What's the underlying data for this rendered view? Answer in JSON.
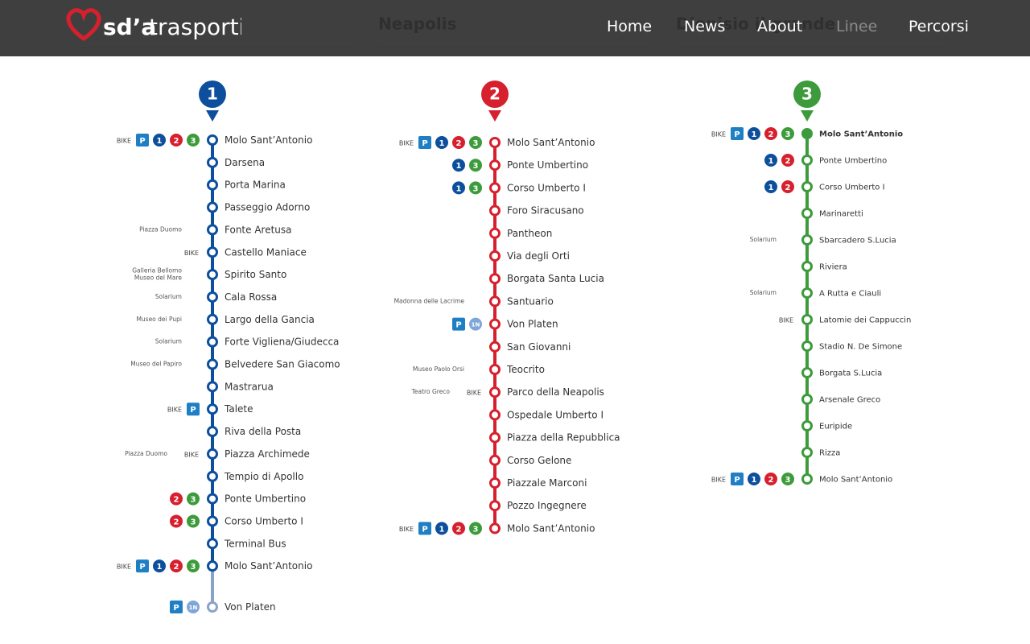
{
  "header": {
    "logo_bold": "sd’a",
    "logo_light": "trasporti",
    "nav": [
      "Home",
      "News",
      "About",
      "Linee",
      "Percorsi"
    ]
  },
  "lines": [
    {
      "number": "1",
      "stops": [
        {
          "name": "Molo Sant’Antonio",
          "badges": [
            "BIKE",
            "P",
            "1",
            "2",
            "3"
          ]
        },
        {
          "name": "Darsena"
        },
        {
          "name": "Porta Marina"
        },
        {
          "name": "Passeggio Adorno"
        },
        {
          "name": "Fonte Aretusa",
          "notes": [
            "Piazza Duomo"
          ]
        },
        {
          "name": "Castello Maniace",
          "badges": [
            "BIKE"
          ]
        },
        {
          "name": "Spirito Santo",
          "notes": [
            "Galleria Bellomo",
            "Museo del Mare"
          ]
        },
        {
          "name": "Cala Rossa",
          "notes": [
            "Solarium"
          ]
        },
        {
          "name": "Largo della Gancia",
          "notes": [
            "Museo dei Pupi"
          ]
        },
        {
          "name": "Forte Vigliena/Giudecca",
          "notes": [
            "Solarium"
          ]
        },
        {
          "name": "Belvedere San Giacomo",
          "notes": [
            "Museo del Papiro"
          ]
        },
        {
          "name": "Mastrarua"
        },
        {
          "name": "Talete",
          "badges": [
            "BIKE",
            "P"
          ]
        },
        {
          "name": "Riva della Posta"
        },
        {
          "name": "Piazza Archimede",
          "notes": [
            "Piazza Duomo"
          ],
          "badges": [
            "BIKE"
          ]
        },
        {
          "name": "Tempio di Apollo"
        },
        {
          "name": "Ponte Umbertino",
          "badges": [
            "2",
            "3"
          ]
        },
        {
          "name": "Corso Umberto I",
          "badges": [
            "2",
            "3"
          ]
        },
        {
          "name": "Terminal Bus"
        },
        {
          "name": "Molo Sant’Antonio",
          "badges": [
            "BIKE",
            "P",
            "1",
            "2",
            "3"
          ]
        },
        {
          "name": "Von Platen",
          "badges": [
            "P",
            "1N"
          ]
        }
      ]
    },
    {
      "number": "2",
      "heading": "Neapolis",
      "stops": [
        {
          "name": "Molo Sant’Antonio",
          "badges": [
            "BIKE",
            "P",
            "1",
            "2",
            "3"
          ]
        },
        {
          "name": "Ponte Umbertino",
          "badges": [
            "1",
            "3"
          ]
        },
        {
          "name": "Corso Umberto I",
          "badges": [
            "1",
            "3"
          ]
        },
        {
          "name": "Foro Siracusano"
        },
        {
          "name": "Pantheon"
        },
        {
          "name": "Via degli Orti"
        },
        {
          "name": "Borgata Santa Lucia"
        },
        {
          "name": "Santuario",
          "notes": [
            "Madonna delle Lacrime"
          ]
        },
        {
          "name": "Von Platen",
          "badges": [
            "P",
            "1N"
          ]
        },
        {
          "name": "San Giovanni"
        },
        {
          "name": "Teocrito",
          "notes": [
            "Museo Paolo Orsi"
          ]
        },
        {
          "name": "Parco della Neapolis",
          "notes": [
            "Teatro Greco"
          ],
          "badges": [
            "BIKE"
          ]
        },
        {
          "name": "Ospedale Umberto I"
        },
        {
          "name": "Piazza della Repubblica"
        },
        {
          "name": "Corso Gelone"
        },
        {
          "name": "Piazzale Marconi"
        },
        {
          "name": "Pozzo Ingegnere"
        },
        {
          "name": "Molo Sant’Antonio",
          "badges": [
            "BIKE",
            "P",
            "1",
            "2",
            "3"
          ]
        }
      ]
    },
    {
      "number": "3",
      "heading": "Dionisio il grande",
      "stops": [
        {
          "name": "Molo Sant’Antonio",
          "badges": [
            "BIKE",
            "P",
            "1",
            "2",
            "3"
          ]
        },
        {
          "name": "Ponte Umbertino",
          "badges": [
            "1",
            "2"
          ]
        },
        {
          "name": "Corso Umberto I",
          "badges": [
            "1",
            "2"
          ]
        },
        {
          "name": "Marinaretti"
        },
        {
          "name": "Sbarcadero S.Lucia",
          "notes": [
            "Solarium"
          ]
        },
        {
          "name": "Riviera"
        },
        {
          "name": "A Rutta e Ciauli",
          "notes": [
            "Solarium"
          ]
        },
        {
          "name": "Latomie dei Cappuccin",
          "badges": [
            "BIKE"
          ]
        },
        {
          "name": "Stadio N. De Simone"
        },
        {
          "name": "Borgata S.Lucia"
        },
        {
          "name": "Arsenale Greco"
        },
        {
          "name": "Euripide"
        },
        {
          "name": "Rizza"
        },
        {
          "name": "Molo Sant’Antonio",
          "badges": [
            "BIKE",
            "P",
            "1",
            "2",
            "3"
          ]
        }
      ]
    }
  ]
}
